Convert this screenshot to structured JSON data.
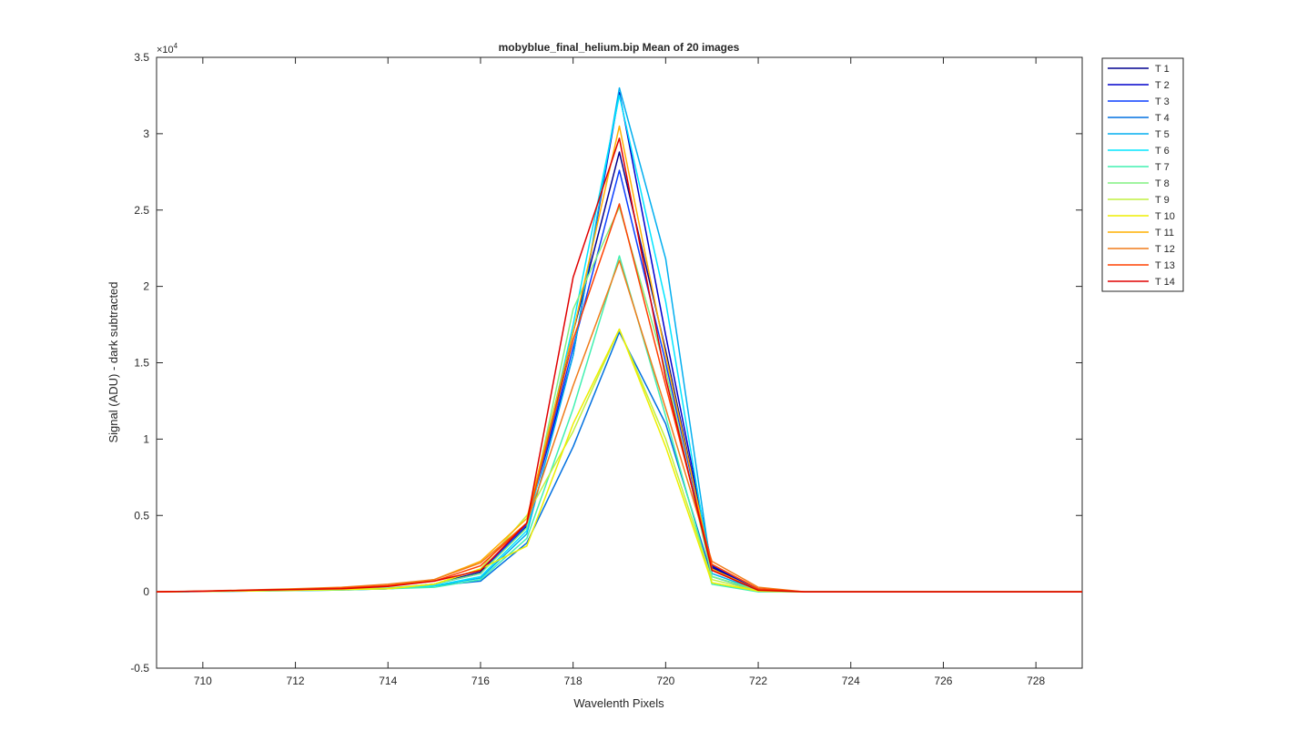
{
  "chart_data": {
    "type": "line",
    "title": "mobyblue_final_helium.bip  Mean of 20 images",
    "xlabel": "Wavelenth Pixels",
    "ylabel": "Signal (ADU) - dark subtracted",
    "y_exponent_label": "×10",
    "y_exponent_power": "4",
    "xlim": [
      709,
      729
    ],
    "ylim": [
      -0.5,
      3.5
    ],
    "x_ticks": [
      710,
      712,
      714,
      716,
      718,
      720,
      722,
      724,
      726,
      728
    ],
    "x_tick_labels": [
      "710",
      "712",
      "714",
      "716",
      "718",
      "720",
      "722",
      "724",
      "726",
      "728"
    ],
    "y_ticks": [
      -0.5,
      0,
      0.5,
      1,
      1.5,
      2,
      2.5,
      3,
      3.5
    ],
    "y_tick_labels": [
      "-0.5",
      "0",
      "0.5",
      "1",
      "1.5",
      "2",
      "2.5",
      "3",
      "3.5"
    ],
    "grid": false,
    "legend_position": "outside-right-top",
    "x": [
      709,
      710,
      711,
      712,
      713,
      714,
      715,
      716,
      717,
      718,
      719,
      720,
      721,
      722,
      723,
      724,
      725,
      726,
      727,
      728,
      729
    ],
    "series": [
      {
        "name": "T 1",
        "color": "#00008F",
        "values": [
          0,
          0.003,
          0.006,
          0.01,
          0.015,
          0.02,
          0.05,
          0.13,
          0.43,
          1.7,
          2.88,
          1.58,
          0.16,
          0.01,
          0,
          0,
          0,
          0,
          0,
          0,
          0
        ]
      },
      {
        "name": "T 2",
        "color": "#0000CC",
        "values": [
          0,
          0.003,
          0.006,
          0.01,
          0.015,
          0.02,
          0.05,
          0.12,
          0.45,
          1.55,
          3.27,
          1.68,
          0.17,
          0.01,
          0,
          0,
          0,
          0,
          0,
          0,
          0
        ]
      },
      {
        "name": "T 3",
        "color": "#0A3FFF",
        "values": [
          0,
          0.003,
          0.006,
          0.01,
          0.015,
          0.02,
          0.05,
          0.12,
          0.44,
          1.6,
          2.76,
          1.5,
          0.15,
          0.01,
          0,
          0,
          0,
          0,
          0,
          0,
          0
        ]
      },
      {
        "name": "T 4",
        "color": "#0070E0",
        "values": [
          0,
          0.002,
          0.005,
          0.008,
          0.012,
          0.02,
          0.04,
          0.07,
          0.32,
          0.95,
          1.7,
          1.1,
          0.1,
          0.005,
          0,
          0,
          0,
          0,
          0,
          0,
          0
        ]
      },
      {
        "name": "T 5",
        "color": "#00AEEF",
        "values": [
          0,
          0.003,
          0.006,
          0.01,
          0.015,
          0.02,
          0.04,
          0.09,
          0.38,
          1.55,
          3.3,
          2.18,
          0.12,
          0.01,
          0,
          0,
          0,
          0,
          0,
          0,
          0
        ]
      },
      {
        "name": "T 6",
        "color": "#00E5FF",
        "values": [
          0,
          0.003,
          0.006,
          0.01,
          0.015,
          0.02,
          0.04,
          0.1,
          0.4,
          1.75,
          3.25,
          1.9,
          0.1,
          0.01,
          0,
          0,
          0,
          0,
          0,
          0,
          0
        ]
      },
      {
        "name": "T 7",
        "color": "#40F0B0",
        "values": [
          0,
          0.002,
          0.005,
          0.008,
          0.012,
          0.02,
          0.03,
          0.08,
          0.35,
          1.2,
          2.2,
          1.15,
          0.05,
          0,
          0,
          0,
          0,
          0,
          0,
          0,
          0
        ]
      },
      {
        "name": "T 8",
        "color": "#80F080",
        "values": [
          0,
          0.003,
          0.006,
          0.01,
          0.015,
          0.025,
          0.05,
          0.12,
          0.42,
          1.85,
          2.52,
          1.45,
          0.1,
          0.01,
          0,
          0,
          0,
          0,
          0,
          0,
          0
        ]
      },
      {
        "name": "T 9",
        "color": "#C0F040",
        "values": [
          0,
          0.003,
          0.006,
          0.01,
          0.015,
          0.02,
          0.05,
          0.15,
          0.5,
          1.05,
          1.72,
          1.0,
          0.08,
          0.005,
          0,
          0,
          0,
          0,
          0,
          0,
          0
        ]
      },
      {
        "name": "T 10",
        "color": "#EEEE00",
        "values": [
          0,
          0.003,
          0.006,
          0.01,
          0.015,
          0.02,
          0.05,
          0.15,
          0.3,
          1.1,
          1.72,
          0.95,
          0.06,
          0.005,
          0,
          0,
          0,
          0,
          0,
          0,
          0
        ]
      },
      {
        "name": "T 11",
        "color": "#FFB000",
        "values": [
          0,
          0.004,
          0.01,
          0.015,
          0.025,
          0.04,
          0.08,
          0.2,
          0.48,
          1.7,
          3.05,
          1.55,
          0.15,
          0.01,
          0,
          0,
          0,
          0,
          0,
          0,
          0
        ]
      },
      {
        "name": "T 12",
        "color": "#F07C1A",
        "values": [
          0,
          0.005,
          0.012,
          0.02,
          0.03,
          0.05,
          0.08,
          0.19,
          0.45,
          1.35,
          2.17,
          1.2,
          0.2,
          0.03,
          0,
          0,
          0,
          0,
          0,
          0,
          0
        ]
      },
      {
        "name": "T 13",
        "color": "#FF4000",
        "values": [
          0,
          0.004,
          0.01,
          0.015,
          0.025,
          0.04,
          0.07,
          0.17,
          0.45,
          1.65,
          2.54,
          1.35,
          0.18,
          0.02,
          0,
          0,
          0,
          0,
          0,
          0,
          0
        ]
      },
      {
        "name": "T 14",
        "color": "#E00000",
        "values": [
          0,
          0.004,
          0.01,
          0.015,
          0.02,
          0.035,
          0.07,
          0.14,
          0.45,
          2.06,
          2.97,
          1.4,
          0.14,
          0.01,
          0,
          0,
          0,
          0,
          0,
          0,
          0
        ]
      }
    ]
  }
}
